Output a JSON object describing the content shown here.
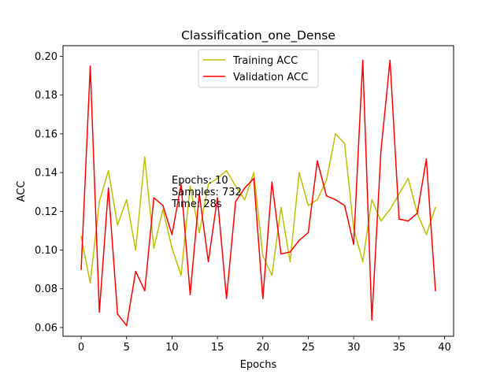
{
  "chart_data": {
    "type": "line",
    "title": "Classification_one_Dense",
    "xlabel": "Epochs",
    "ylabel": "ACC",
    "xlim": [
      -2,
      41
    ],
    "ylim": [
      0.0555,
      0.2055
    ],
    "xticks": [
      0,
      5,
      10,
      15,
      20,
      25,
      30,
      35,
      40
    ],
    "xtick_labels": [
      "0",
      "5",
      "10",
      "15",
      "20",
      "25",
      "30",
      "35",
      "40"
    ],
    "yticks": [
      0.06,
      0.08,
      0.1,
      0.12,
      0.14,
      0.16,
      0.18,
      0.2
    ],
    "ytick_labels": [
      "0.06",
      "0.08",
      "0.10",
      "0.12",
      "0.14",
      "0.16",
      "0.18",
      "0.20"
    ],
    "grid": false,
    "legend_position": "top-center",
    "x": [
      0,
      1,
      2,
      3,
      4,
      5,
      6,
      7,
      8,
      9,
      10,
      11,
      12,
      13,
      14,
      15,
      16,
      17,
      18,
      19,
      20,
      21,
      22,
      23,
      24,
      25,
      26,
      27,
      28,
      29,
      30,
      31,
      32,
      33,
      34,
      35,
      36,
      37,
      38,
      39
    ],
    "series": [
      {
        "name": "Training ACC",
        "color": "#bfbf00",
        "values": [
          0.107,
          0.083,
          0.125,
          0.141,
          0.113,
          0.126,
          0.1,
          0.148,
          0.101,
          0.121,
          0.101,
          0.087,
          0.133,
          0.109,
          0.134,
          0.137,
          0.141,
          0.133,
          0.126,
          0.14,
          0.097,
          0.087,
          0.122,
          0.094,
          0.14,
          0.123,
          0.126,
          0.136,
          0.16,
          0.155,
          0.111,
          0.094,
          0.126,
          0.115,
          0.121,
          0.129,
          0.137,
          0.119,
          0.108,
          0.122
        ]
      },
      {
        "name": "Validation ACC",
        "color": "#ff0000",
        "values": [
          0.09,
          0.195,
          0.068,
          0.132,
          0.067,
          0.061,
          0.089,
          0.079,
          0.127,
          0.123,
          0.108,
          0.134,
          0.077,
          0.129,
          0.094,
          0.127,
          0.075,
          0.125,
          0.132,
          0.137,
          0.075,
          0.135,
          0.098,
          0.099,
          0.105,
          0.109,
          0.146,
          0.128,
          0.126,
          0.123,
          0.103,
          0.198,
          0.064,
          0.151,
          0.198,
          0.116,
          0.115,
          0.119,
          0.147,
          0.079
        ]
      }
    ],
    "annotations": [
      "Epochs: 10",
      "Samples: 732",
      "Time: 28s"
    ]
  }
}
